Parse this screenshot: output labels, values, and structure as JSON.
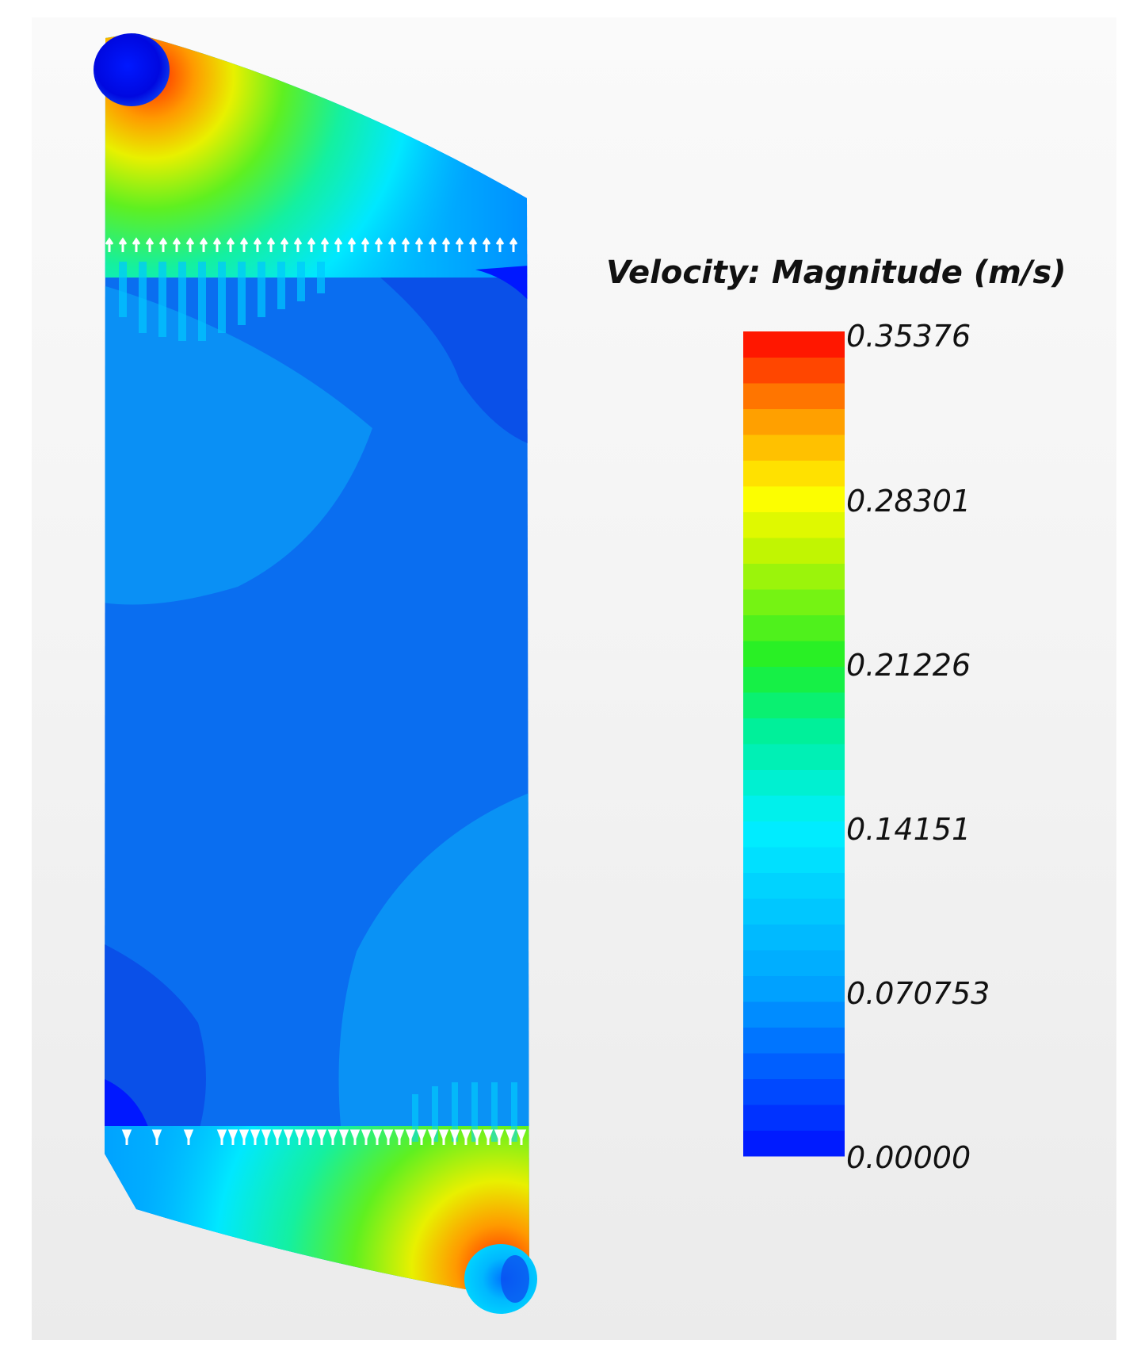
{
  "legend": {
    "title": "Velocity: Magnitude (m/s)",
    "min": 0.0,
    "max": 0.35376,
    "ticks": [
      "0.35376",
      "0.28301",
      "0.21226",
      "0.14151",
      "0.070753",
      "0.00000"
    ],
    "band_count": 32
  },
  "colors": {
    "low": "#0010ff",
    "mid_low": "#00e8ff",
    "mid": "#22f040",
    "mid_high": "#ffff00",
    "high": "#ff0000",
    "field_dominant": "#0a78f0"
  }
}
